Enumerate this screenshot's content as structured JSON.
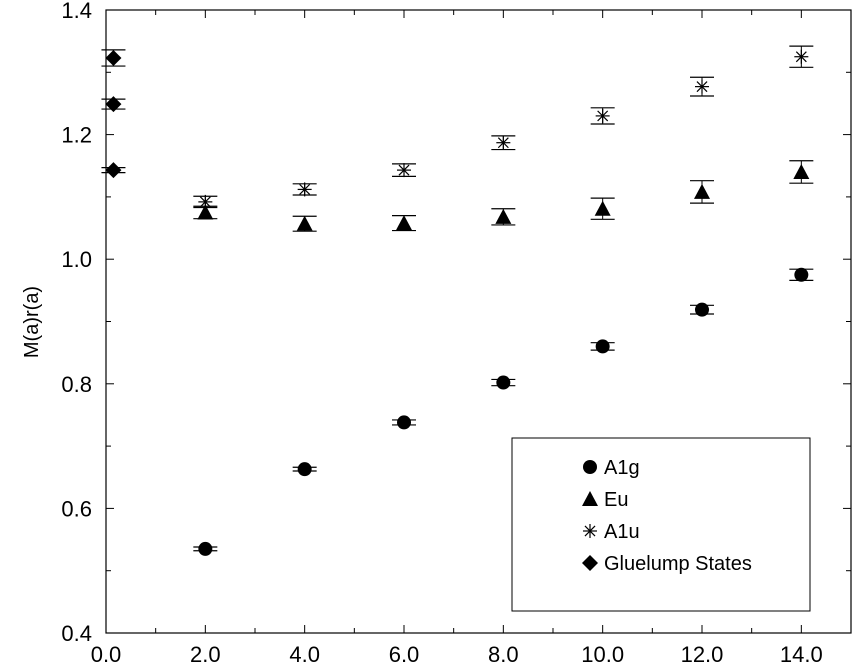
{
  "chart_data": {
    "type": "scatter",
    "title": "",
    "xlabel": "",
    "ylabel": "M(a)r(a)",
    "xlim": [
      0.0,
      15.0
    ],
    "ylim": [
      0.4,
      1.4
    ],
    "x_ticks": [
      "0.0",
      "2.0",
      "4.0",
      "6.0",
      "8.0",
      "10.0",
      "12.0",
      "14.0"
    ],
    "y_ticks": [
      "0.4",
      "0.6",
      "0.8",
      "1.0",
      "1.2",
      "1.4"
    ],
    "grid": false,
    "legend_position": "bottom-right",
    "series": [
      {
        "name": "A1g",
        "marker": "circle",
        "x": [
          2,
          4,
          6,
          8,
          10,
          12,
          14
        ],
        "y": [
          0.535,
          0.663,
          0.738,
          0.802,
          0.86,
          0.919,
          0.975
        ],
        "err": [
          0.003,
          0.003,
          0.004,
          0.005,
          0.006,
          0.007,
          0.009
        ]
      },
      {
        "name": "Eu",
        "marker": "triangle",
        "x": [
          2,
          4,
          6,
          8,
          10,
          12,
          14
        ],
        "y": [
          1.075,
          1.057,
          1.058,
          1.068,
          1.081,
          1.108,
          1.14
        ],
        "err": [
          0.01,
          0.012,
          0.012,
          0.013,
          0.017,
          0.018,
          0.018
        ]
      },
      {
        "name": "A1u",
        "marker": "asterisk",
        "x": [
          2,
          4,
          6,
          8,
          10,
          12,
          14
        ],
        "y": [
          1.092,
          1.112,
          1.143,
          1.187,
          1.23,
          1.277,
          1.325
        ],
        "err": [
          0.009,
          0.009,
          0.01,
          0.011,
          0.013,
          0.015,
          0.017
        ]
      },
      {
        "name": "Gluelump States",
        "marker": "diamond",
        "x": [
          0.15,
          0.15,
          0.15
        ],
        "y": [
          1.143,
          1.249,
          1.323
        ],
        "err": [
          0.004,
          0.008,
          0.013
        ]
      }
    ]
  }
}
